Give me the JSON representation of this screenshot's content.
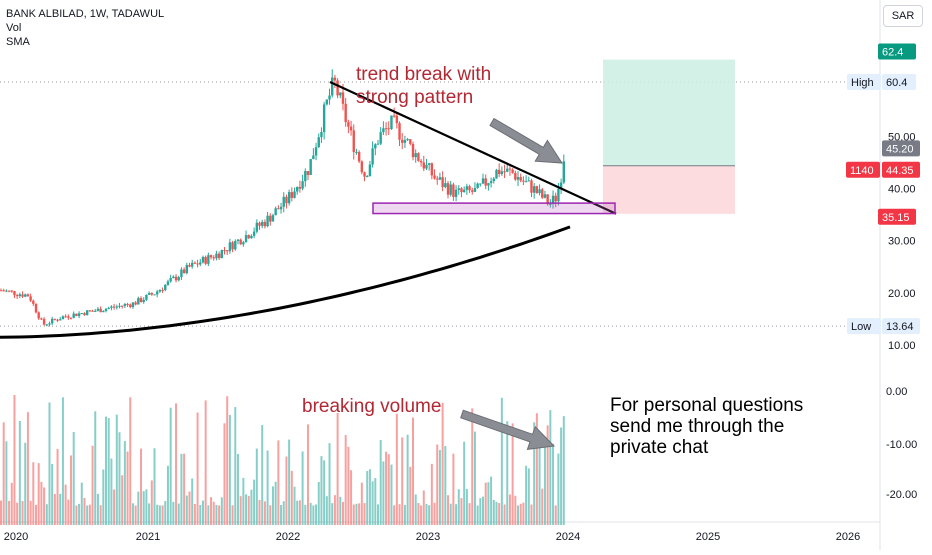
{
  "header": {
    "symbol_line": "BANK ALBILAD, 1W, TADAWUL",
    "indicator_vol": "Vol",
    "indicator_sma": "SMA",
    "currency": "SAR"
  },
  "chart_data": {
    "type": "candlestick",
    "price_axis": {
      "ticks": [
        "50.00",
        "40.00",
        "30.00",
        "20.00",
        "10.00"
      ],
      "range": [
        8,
        70
      ]
    },
    "volume_axis": {
      "ticks": [
        "0.00",
        "-10.00",
        "-20.00"
      ]
    },
    "x_axis": {
      "ticks": [
        "2020",
        "2021",
        "2022",
        "2023",
        "2024",
        "2025",
        "2026"
      ]
    },
    "price_labels": {
      "target_value": "62.4",
      "high_label": "High",
      "high_value": "60.4",
      "last_value": "45.20",
      "ticker_tag": "1140",
      "current_value": "44.35",
      "stop_value": "35.15",
      "low_label": "Low",
      "low_value": "13.64"
    },
    "colors": {
      "up": "#26a69a",
      "down": "#ef5350",
      "sma": "#000000",
      "trendline": "#000000",
      "support_box": "#9c27b0",
      "target_zone": "#cdeee3",
      "stop_zone": "#fcd8dc",
      "annotation": "#b22833"
    },
    "annotations": {
      "trend_break": "trend break  with strong pattern",
      "volume": "breaking volume",
      "note": "For personal questions send me through the private chat"
    }
  }
}
